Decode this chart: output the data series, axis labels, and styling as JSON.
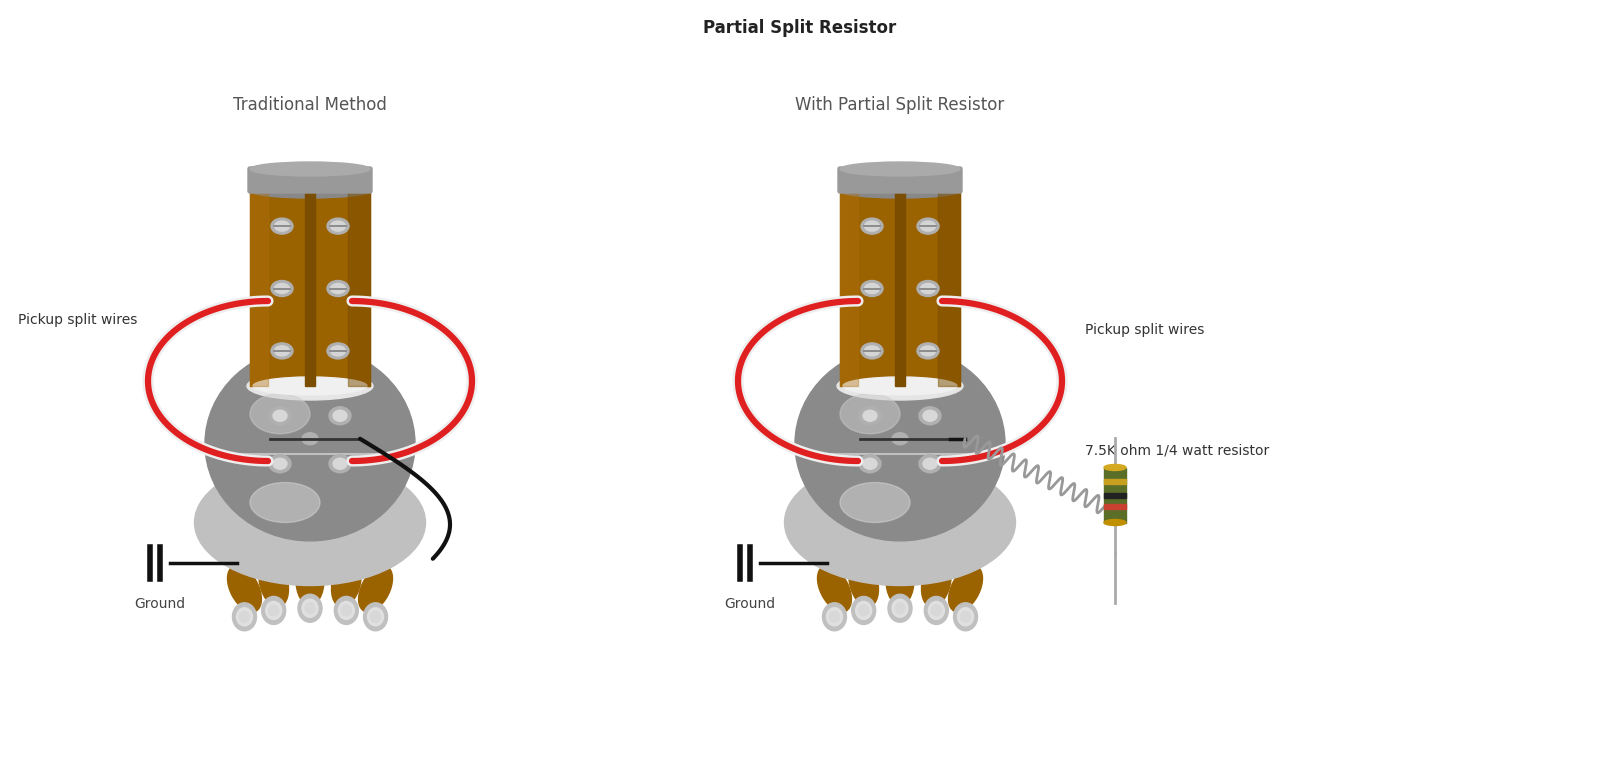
{
  "title": "Partial Split Resistor",
  "title_fontsize": 12,
  "title_fontweight": "bold",
  "subtitle_left": "Traditional Method",
  "subtitle_right": "With Partial Split Resistor",
  "subtitle_fontsize": 12,
  "label_pickup_split": "Pickup split wires",
  "label_ground": "Ground",
  "label_resistor": "7.5K ohm 1/4 watt resistor",
  "bg_color": "#ffffff",
  "pickup_brown": "#9B6200",
  "pickup_brown_light": "#B07010",
  "pickup_brown_dark": "#7a4d00",
  "pickup_gray": "#8a8a8a",
  "pickup_gray_light": "#b5b5b5",
  "pickup_gray_dark": "#606060",
  "pickup_silver": "#c8c8c8",
  "wire_red": "#e02020",
  "wire_white": "#eeeeee",
  "wire_black": "#111111",
  "resistor_green": "#556b2f",
  "resistor_tan": "#c8a030",
  "resistor_body": "#4a6020",
  "coil_color": "#888888",
  "ground_black": "#111111",
  "cap_gray": "#909090",
  "globe_gray": "#909090",
  "lower_gray": "#b8b8b8",
  "foot_gray": "#c0c0c0"
}
